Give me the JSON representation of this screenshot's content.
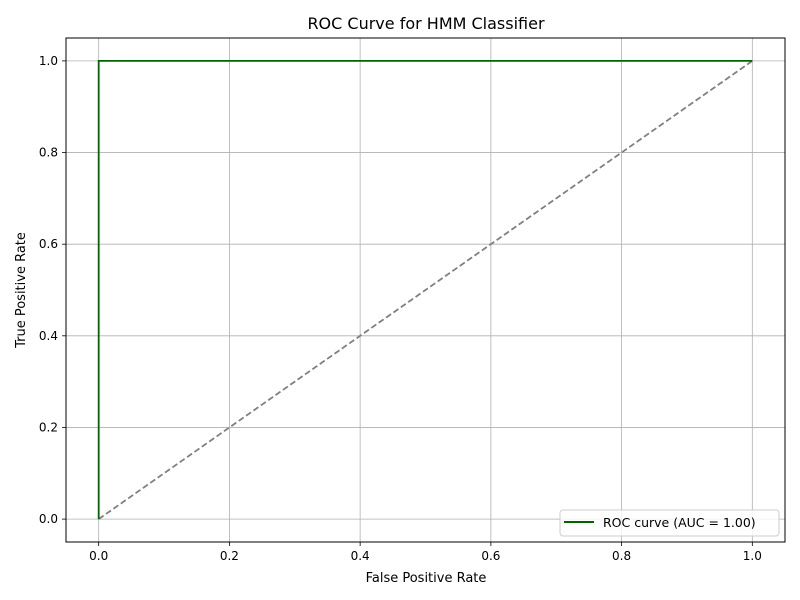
{
  "chart_data": {
    "type": "line",
    "title": "ROC Curve for HMM Classifier",
    "xlabel": "False Positive Rate",
    "ylabel": "True Positive Rate",
    "xlim": [
      -0.05,
      1.05
    ],
    "ylim": [
      -0.05,
      1.05
    ],
    "xticks": [
      "0.0",
      "0.2",
      "0.4",
      "0.6",
      "0.8",
      "1.0"
    ],
    "yticks": [
      "0.0",
      "0.2",
      "0.4",
      "0.6",
      "0.8",
      "1.0"
    ],
    "grid": true,
    "legend_position": "lower-right",
    "series": [
      {
        "name": "ROC curve (AUC = 1.00)",
        "color": "#006400",
        "style": "solid",
        "x": [
          0.0,
          0.0,
          1.0
        ],
        "y": [
          0.0,
          1.0,
          1.0
        ]
      },
      {
        "color": "#808080",
        "style": "dashed",
        "x": [
          0.0,
          1.0
        ],
        "y": [
          0.0,
          1.0
        ]
      }
    ]
  }
}
